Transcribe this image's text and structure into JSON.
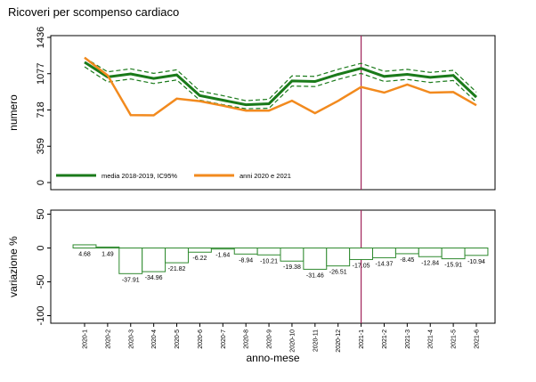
{
  "title": "Ricoveri per scompenso cardiaco",
  "colors": {
    "mean": "#1a7a1a",
    "ci": "#1a7a1a",
    "actual": "#f28a1e",
    "vline": "#a0235a",
    "bar_stroke": "#2f8a2f",
    "bar_fill": "#ffffff"
  },
  "chart_data": [
    {
      "type": "line",
      "ylabel": "numero",
      "yticks": [
        0,
        359,
        718,
        1077,
        1436
      ],
      "ylim": [
        0,
        1436
      ],
      "grid": false,
      "categories": [
        "2020-1",
        "2020-2",
        "2020-3",
        "2020-4",
        "2020-5",
        "2020-6",
        "2020-7",
        "2020-8",
        "2020-9",
        "2020-10",
        "2020-11",
        "2020-12",
        "2021-1",
        "2021-2",
        "2021-3",
        "2021-4",
        "2021-5",
        "2021-6"
      ],
      "series": [
        {
          "name": "media 2018-2019, IC95%",
          "values": [
            1190,
            1045,
            1075,
            1030,
            1065,
            860,
            815,
            770,
            780,
            1005,
            1000,
            1070,
            1130,
            1050,
            1070,
            1040,
            1060,
            845
          ]
        },
        {
          "name": "upper",
          "values": [
            1235,
            1095,
            1125,
            1080,
            1115,
            905,
            860,
            810,
            825,
            1055,
            1050,
            1120,
            1180,
            1100,
            1120,
            1090,
            1110,
            895
          ]
        },
        {
          "name": "lower",
          "values": [
            1145,
            995,
            1025,
            980,
            1015,
            815,
            770,
            730,
            735,
            955,
            950,
            1020,
            1080,
            1000,
            1020,
            990,
            1010,
            795
          ]
        },
        {
          "name": "anni 2020 e 2021",
          "values": [
            1235,
            1060,
            668,
            665,
            830,
            805,
            760,
            712,
            712,
            810,
            686,
            808,
            945,
            890,
            970,
            890,
            895,
            765
          ]
        }
      ],
      "legend": {
        "position": "bottom",
        "entries": [
          "media 2018-2019, IC95%",
          "anni 2020 e 2021"
        ]
      },
      "vline_category": "2021-1"
    },
    {
      "type": "bar",
      "ylabel": "variazione %",
      "xlabel": "anno-mese",
      "yticks": [
        50,
        0,
        -50,
        -100
      ],
      "ylim": [
        -110,
        55
      ],
      "grid": false,
      "categories": [
        "2020-1",
        "2020-2",
        "2020-3",
        "2020-4",
        "2020-5",
        "2020-6",
        "2020-7",
        "2020-8",
        "2020-9",
        "2020-10",
        "2020-11",
        "2020-12",
        "2021-1",
        "2021-2",
        "2021-3",
        "2021-4",
        "2021-5",
        "2021-6"
      ],
      "values": [
        4.68,
        1.49,
        -37.91,
        -34.96,
        -21.82,
        -6.22,
        -1.64,
        -8.94,
        -10.21,
        -19.38,
        -31.46,
        -26.51,
        -17.05,
        -14.37,
        -8.45,
        -12.84,
        -15.91,
        -10.94
      ],
      "value_labels": [
        "4.68",
        "1.49",
        "-37.91",
        "-34.96",
        "-21.82",
        "-6.22",
        "-1.64",
        "-8.94",
        "-10.21",
        "-19.38",
        "-31.46",
        "-26.51",
        "-17.05",
        "-14.37",
        "-8.45",
        "-12.84",
        "-15.91",
        "-10.94"
      ],
      "vline_category": "2021-1"
    }
  ]
}
